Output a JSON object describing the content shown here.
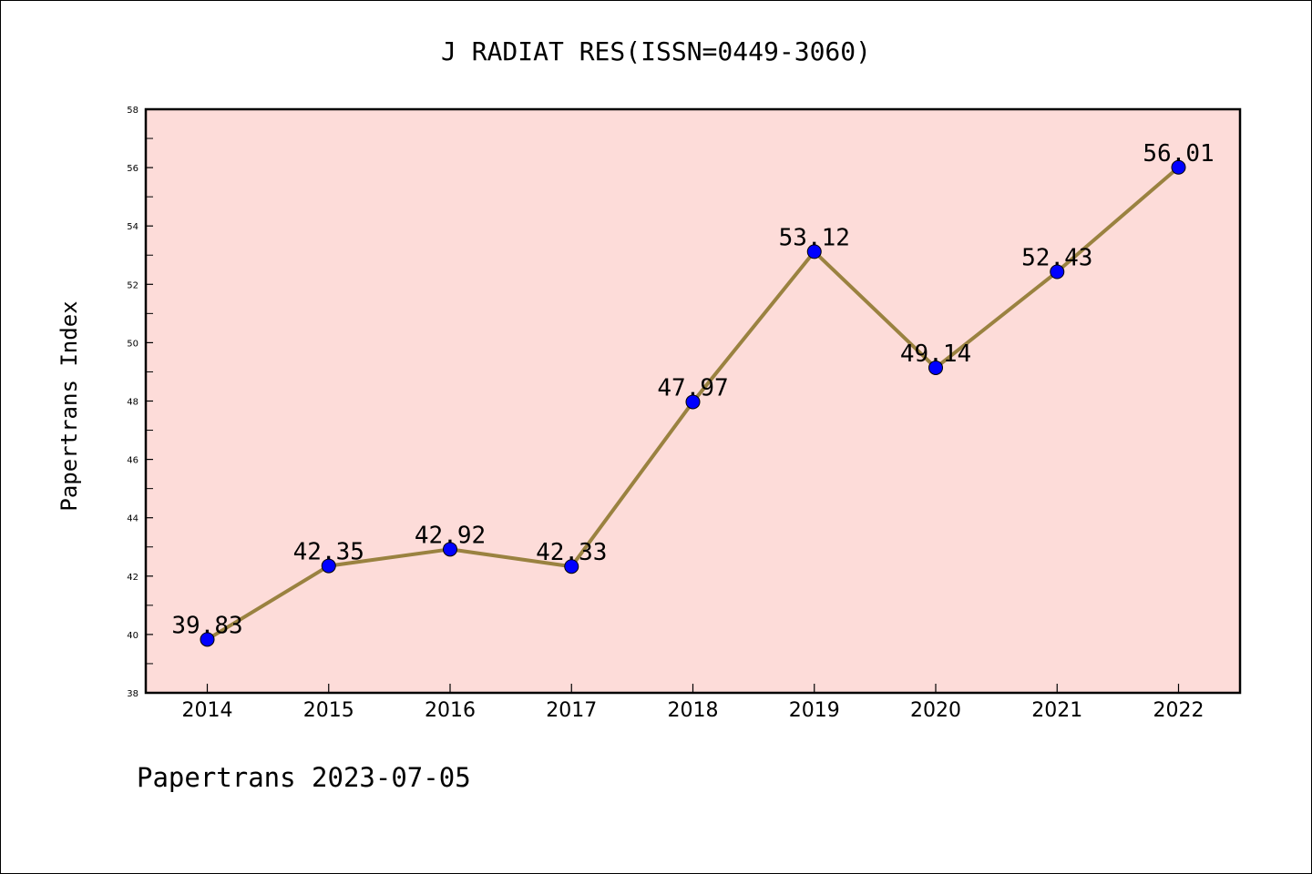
{
  "chart_data": {
    "type": "line",
    "title": "J RADIAT RES(ISSN=0449-3060)",
    "xlabel": "",
    "ylabel": "Papertrans Index",
    "categories": [
      "2014",
      "2015",
      "2016",
      "2017",
      "2018",
      "2019",
      "2020",
      "2021",
      "2022"
    ],
    "series": [
      {
        "values": [
          39.83,
          42.35,
          42.92,
          42.33,
          47.97,
          53.12,
          49.14,
          52.43,
          56.01
        ],
        "labels": [
          "39.83",
          "42.35",
          "42.92",
          "42.33",
          "47.97",
          "53.12",
          "49.14",
          "52.43",
          "56.01"
        ]
      }
    ],
    "ylim": [
      38,
      58
    ],
    "yticks": [
      "38",
      "40",
      "42",
      "44",
      "46",
      "48",
      "50",
      "52",
      "54",
      "56",
      "58"
    ],
    "grid": false,
    "legend": "none",
    "colors": {
      "plot_background": "#fddcd9",
      "line": "#9a8240",
      "marker": "#0000ff"
    }
  },
  "footer": "Papertrans 2023-07-05"
}
